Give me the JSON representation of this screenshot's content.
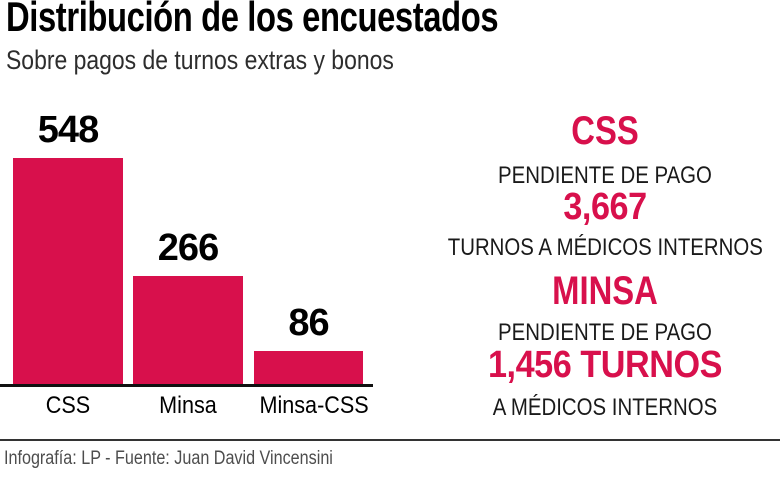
{
  "chart_data": {
    "type": "bar",
    "title": "Distribución de los encuestados",
    "subtitle": "Sobre pagos de turnos extras y bonos",
    "categories": [
      "CSS",
      "Minsa",
      "Minsa-CSS"
    ],
    "values": [
      548,
      266,
      86
    ],
    "ylim": [
      0,
      548
    ],
    "grid": false,
    "legend": false,
    "xlabel": "",
    "ylabel": "",
    "bar_color": "#d8104c",
    "value_label_color": "#000000"
  },
  "side_panel": {
    "sections": [
      {
        "org": "CSS",
        "pending_label": "PENDIENTE DE PAGO",
        "pending_value": "3,667",
        "unit_label": "TURNOS A MÉDICOS INTERNOS"
      },
      {
        "org": "MINSA",
        "pending_label": "PENDIENTE DE PAGO",
        "pending_value": "1,456 TURNOS",
        "unit_label": "A MÉDICOS INTERNOS"
      }
    ]
  },
  "footer": {
    "credit": "Infografía: LP - Fuente: Juan David Vincensini"
  },
  "colors": {
    "accent": "#d8104c",
    "heading": "#000000",
    "text": "#1a1a1a",
    "subtitle": "#2d2d2d",
    "muted": "#4d4d4d",
    "axis": "#111111"
  }
}
